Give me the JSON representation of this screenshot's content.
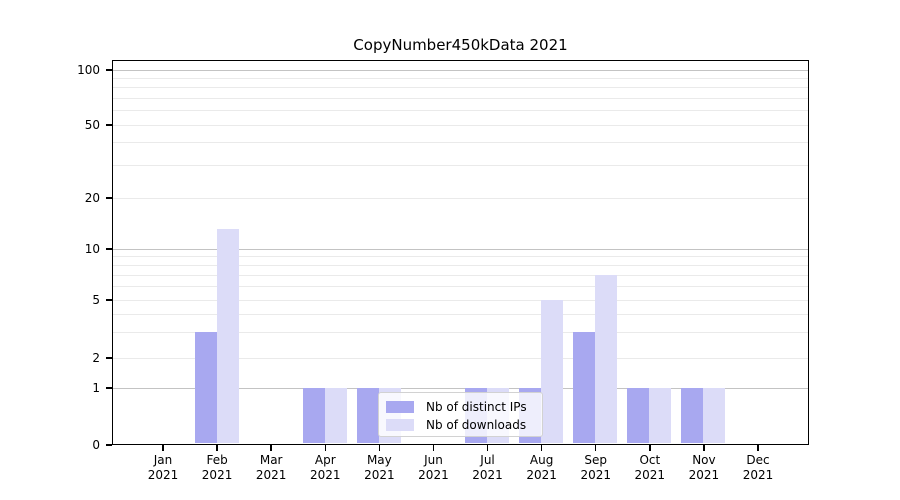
{
  "chart_data": {
    "type": "bar",
    "title": "CopyNumber450kData 2021",
    "categories": [
      "Jan",
      "Feb",
      "Mar",
      "Apr",
      "May",
      "Jun",
      "Jul",
      "Aug",
      "Sep",
      "Oct",
      "Nov",
      "Dec"
    ],
    "year_label": "2021",
    "series": [
      {
        "name": "Nb of distinct IPs",
        "color": "#a8a8f0",
        "values": [
          0,
          3,
          0,
          1,
          1,
          0,
          1,
          1,
          3,
          1,
          1,
          0
        ]
      },
      {
        "name": "Nb of downloads",
        "color": "#dcdcf8",
        "values": [
          0,
          13,
          0,
          1,
          1,
          0,
          1,
          5,
          7,
          1,
          1,
          0
        ]
      }
    ],
    "yticks": [
      0,
      1,
      2,
      5,
      10,
      20,
      50,
      100
    ],
    "major_gridline_values": [
      1,
      10,
      100
    ],
    "minor_gridline_values": [
      3,
      4,
      6,
      7,
      8,
      9,
      30,
      40,
      60,
      70,
      80,
      90
    ],
    "yscale": "log-like (0,1,2,5,10,20,50,100)",
    "ylim": [
      0,
      100
    ],
    "xlabel": "",
    "ylabel": "",
    "grid": true,
    "legend_position": "lower-center",
    "colors": {
      "background": "#ffffff",
      "axis": "#000000",
      "grid_major": "#c3c3c3",
      "grid_minor": "#eaeaea"
    }
  }
}
